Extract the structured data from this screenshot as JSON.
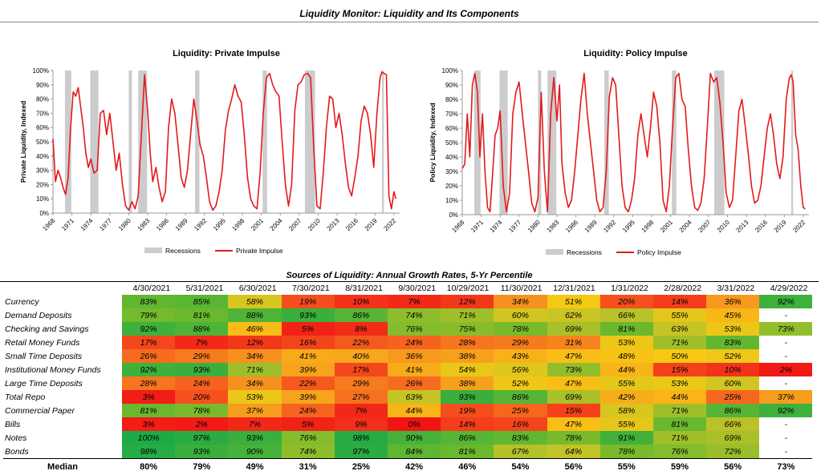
{
  "page": {
    "title": "Liquidity Monitor: Liquidity and Its Components",
    "table_title": "Sources of Liquidity: Annual Growth Rates, 5-Yr Percentile"
  },
  "colors": {
    "line": "#e31a1c",
    "recession": "#cccccc"
  },
  "chart_data": [
    {
      "type": "line",
      "title": "Liquidity: Private Impulse",
      "ylabel": "Private Liquidity, Indexed",
      "xlabel": "",
      "ylim": [
        0,
        1
      ],
      "yticks": [
        "0%",
        "10%",
        "20%",
        "30%",
        "40%",
        "50%",
        "60%",
        "70%",
        "80%",
        "90%",
        "100%"
      ],
      "xlim": [
        1968.0,
        2022.9
      ],
      "xticks": [
        "1968",
        "1971",
        "1974",
        "1977",
        "1980",
        "1983",
        "1986",
        "1989",
        "1992",
        "1995",
        "1998",
        "2001",
        "2004",
        "2007",
        "2010",
        "2013",
        "2016",
        "2019",
        "2022"
      ],
      "legend": [
        "Recessions",
        "Private Impulse"
      ],
      "legend_position": "bottom",
      "recessions": [
        [
          1969.9,
          1970.9
        ],
        [
          1973.9,
          1975.2
        ],
        [
          1980.0,
          1980.5
        ],
        [
          1981.5,
          1982.9
        ],
        [
          1990.5,
          1991.2
        ],
        [
          2001.2,
          2001.9
        ],
        [
          2007.9,
          2009.5
        ],
        [
          2020.1,
          2020.4
        ]
      ],
      "series": [
        {
          "name": "Private Impulse",
          "x": [
            1968.0,
            1968.4,
            1968.8,
            1969.2,
            1969.6,
            1970.0,
            1970.4,
            1970.8,
            1971.2,
            1971.6,
            1972.0,
            1972.4,
            1972.8,
            1973.2,
            1973.6,
            1974.0,
            1974.5,
            1975.0,
            1975.5,
            1976.0,
            1976.5,
            1977.0,
            1977.5,
            1978.0,
            1978.5,
            1979.0,
            1979.5,
            1980.0,
            1980.5,
            1981.0,
            1981.5,
            1982.0,
            1982.5,
            1983.0,
            1983.4,
            1983.8,
            1984.3,
            1984.8,
            1985.3,
            1985.8,
            1986.3,
            1986.8,
            1987.3,
            1987.8,
            1988.3,
            1988.8,
            1989.3,
            1989.8,
            1990.3,
            1990.8,
            1991.3,
            1991.8,
            1992.3,
            1992.8,
            1993.3,
            1993.8,
            1994.3,
            1994.8,
            1995.3,
            1995.8,
            1996.3,
            1996.8,
            1997.3,
            1997.8,
            1998.3,
            1998.8,
            1999.3,
            1999.8,
            2000.3,
            2000.8,
            2001.3,
            2001.8,
            2002.3,
            2002.8,
            2003.3,
            2003.8,
            2004.3,
            2004.8,
            2005.3,
            2005.8,
            2006.3,
            2006.8,
            2007.3,
            2007.8,
            2008.3,
            2008.8,
            2009.3,
            2009.8,
            2010.3,
            2010.8,
            2011.3,
            2011.8,
            2012.3,
            2012.8,
            2013.3,
            2013.8,
            2014.3,
            2014.8,
            2015.3,
            2015.8,
            2016.3,
            2016.8,
            2017.3,
            2017.8,
            2018.3,
            2018.8,
            2019.3,
            2019.8,
            2020.1,
            2020.4,
            2020.8,
            2021.2,
            2021.6,
            2022.0,
            2022.3
          ],
          "values": [
            0.52,
            0.22,
            0.3,
            0.25,
            0.18,
            0.13,
            0.25,
            0.6,
            0.85,
            0.82,
            0.88,
            0.74,
            0.6,
            0.42,
            0.32,
            0.38,
            0.28,
            0.3,
            0.7,
            0.72,
            0.55,
            0.7,
            0.5,
            0.3,
            0.42,
            0.2,
            0.05,
            0.02,
            0.08,
            0.03,
            0.12,
            0.55,
            0.97,
            0.72,
            0.42,
            0.22,
            0.32,
            0.18,
            0.08,
            0.15,
            0.6,
            0.8,
            0.7,
            0.48,
            0.25,
            0.18,
            0.3,
            0.55,
            0.8,
            0.65,
            0.48,
            0.4,
            0.25,
            0.08,
            0.02,
            0.05,
            0.15,
            0.3,
            0.58,
            0.72,
            0.8,
            0.9,
            0.82,
            0.78,
            0.55,
            0.25,
            0.1,
            0.05,
            0.03,
            0.28,
            0.7,
            0.95,
            0.98,
            0.9,
            0.85,
            0.82,
            0.5,
            0.2,
            0.05,
            0.2,
            0.72,
            0.9,
            0.92,
            0.97,
            0.98,
            0.95,
            0.45,
            0.05,
            0.03,
            0.28,
            0.6,
            0.82,
            0.8,
            0.6,
            0.7,
            0.55,
            0.35,
            0.18,
            0.12,
            0.25,
            0.4,
            0.65,
            0.75,
            0.7,
            0.55,
            0.32,
            0.7,
            0.95,
            0.99,
            0.98,
            0.97,
            0.12,
            0.03,
            0.15,
            0.1
          ]
        }
      ]
    },
    {
      "type": "line",
      "title": "Liquidity: Policy Impulse",
      "ylabel": "Policy Liquidity, Indexed",
      "xlabel": "",
      "ylim": [
        0,
        1
      ],
      "yticks": [
        "0%",
        "10%",
        "20%",
        "30%",
        "40%",
        "50%",
        "60%",
        "70%",
        "80%",
        "90%",
        "100%"
      ],
      "xlim": [
        1968.0,
        2022.9
      ],
      "xticks": [
        "1968",
        "1971",
        "1974",
        "1977",
        "1980",
        "1983",
        "1986",
        "1989",
        "1992",
        "1995",
        "1998",
        "2001",
        "2004",
        "2007",
        "2010",
        "2013",
        "2016",
        "2019",
        "2022"
      ],
      "legend": [
        "Recessions",
        "Policy Impulse"
      ],
      "legend_position": "bottom",
      "recessions": [
        [
          1969.9,
          1970.9
        ],
        [
          1973.9,
          1975.2
        ],
        [
          1980.0,
          1980.5
        ],
        [
          1981.5,
          1982.9
        ],
        [
          1990.5,
          1991.2
        ],
        [
          2001.2,
          2001.9
        ],
        [
          2007.9,
          2009.5
        ],
        [
          2020.1,
          2020.4
        ]
      ],
      "series": [
        {
          "name": "Policy Impulse",
          "x": [
            1968.0,
            1968.4,
            1968.8,
            1969.2,
            1969.6,
            1970.0,
            1970.4,
            1970.8,
            1971.2,
            1971.6,
            1972.0,
            1972.4,
            1972.8,
            1973.2,
            1973.6,
            1974.0,
            1974.5,
            1975.0,
            1975.5,
            1976.0,
            1976.5,
            1977.0,
            1977.5,
            1978.0,
            1978.5,
            1979.0,
            1979.5,
            1980.0,
            1980.5,
            1981.0,
            1981.5,
            1982.0,
            1982.5,
            1983.0,
            1983.4,
            1983.8,
            1984.3,
            1984.8,
            1985.3,
            1985.8,
            1986.3,
            1986.8,
            1987.3,
            1987.8,
            1988.3,
            1988.8,
            1989.3,
            1989.8,
            1990.3,
            1990.8,
            1991.3,
            1991.8,
            1992.3,
            1992.8,
            1993.3,
            1993.8,
            1994.3,
            1994.8,
            1995.3,
            1995.8,
            1996.3,
            1996.8,
            1997.3,
            1997.8,
            1998.3,
            1998.8,
            1999.3,
            1999.8,
            2000.3,
            2000.8,
            2001.3,
            2001.8,
            2002.3,
            2002.8,
            2003.3,
            2003.8,
            2004.3,
            2004.8,
            2005.3,
            2005.8,
            2006.3,
            2006.8,
            2007.3,
            2007.8,
            2008.3,
            2008.8,
            2009.3,
            2009.8,
            2010.3,
            2010.8,
            2011.3,
            2011.8,
            2012.3,
            2012.8,
            2013.3,
            2013.8,
            2014.3,
            2014.8,
            2015.3,
            2015.8,
            2016.3,
            2016.8,
            2017.3,
            2017.8,
            2018.3,
            2018.8,
            2019.3,
            2019.8,
            2020.1,
            2020.4,
            2020.8,
            2021.2,
            2021.6,
            2022.0,
            2022.3
          ],
          "values": [
            0.32,
            0.35,
            0.7,
            0.4,
            0.9,
            0.98,
            0.85,
            0.4,
            0.7,
            0.3,
            0.05,
            0.02,
            0.28,
            0.55,
            0.6,
            0.72,
            0.2,
            0.02,
            0.15,
            0.7,
            0.85,
            0.92,
            0.7,
            0.5,
            0.3,
            0.08,
            0.02,
            0.12,
            0.85,
            0.3,
            0.02,
            0.7,
            0.95,
            0.65,
            0.9,
            0.35,
            0.15,
            0.05,
            0.1,
            0.3,
            0.55,
            0.8,
            0.98,
            0.7,
            0.5,
            0.3,
            0.1,
            0.02,
            0.05,
            0.3,
            0.82,
            0.95,
            0.9,
            0.55,
            0.2,
            0.05,
            0.02,
            0.1,
            0.25,
            0.55,
            0.7,
            0.55,
            0.4,
            0.6,
            0.85,
            0.75,
            0.5,
            0.1,
            0.02,
            0.2,
            0.6,
            0.95,
            0.98,
            0.8,
            0.75,
            0.45,
            0.2,
            0.05,
            0.03,
            0.08,
            0.25,
            0.6,
            0.98,
            0.92,
            0.95,
            0.78,
            0.5,
            0.15,
            0.05,
            0.1,
            0.4,
            0.72,
            0.8,
            0.62,
            0.42,
            0.2,
            0.08,
            0.1,
            0.2,
            0.4,
            0.6,
            0.7,
            0.55,
            0.35,
            0.25,
            0.4,
            0.8,
            0.95,
            0.97,
            0.92,
            0.55,
            0.45,
            0.2,
            0.05,
            0.04
          ]
        }
      ]
    },
    {
      "type": "table",
      "title": "Sources of Liquidity: Annual Growth Rates, 5-Yr Percentile",
      "columns": [
        "4/30/2021",
        "5/31/2021",
        "6/30/2021",
        "7/30/2021",
        "8/31/2021",
        "9/30/2021",
        "10/29/2021",
        "11/30/2021",
        "12/31/2021",
        "1/31/2022",
        "2/28/2022",
        "3/31/2022",
        "4/29/2022"
      ],
      "rows": [
        {
          "label": "Currency",
          "values": [
            83,
            85,
            58,
            19,
            10,
            7,
            12,
            34,
            51,
            20,
            14,
            36,
            92
          ],
          "cells": [
            "83%",
            "85%",
            "58%",
            "19%",
            "10%",
            "7%",
            "12%",
            "34%",
            "51%",
            "20%",
            "14%",
            "36%",
            "92%"
          ]
        },
        {
          "label": "Demand Deposits",
          "values": [
            79,
            81,
            88,
            93,
            86,
            74,
            71,
            60,
            62,
            66,
            55,
            45,
            null
          ],
          "cells": [
            "79%",
            "81%",
            "88%",
            "93%",
            "86%",
            "74%",
            "71%",
            "60%",
            "62%",
            "66%",
            "55%",
            "45%",
            "-"
          ]
        },
        {
          "label": "Checking and Savings",
          "values": [
            92,
            88,
            46,
            5,
            8,
            76,
            75,
            78,
            69,
            81,
            63,
            53,
            73
          ],
          "cells": [
            "92%",
            "88%",
            "46%",
            "5%",
            "8%",
            "76%",
            "75%",
            "78%",
            "69%",
            "81%",
            "63%",
            "53%",
            "73%"
          ]
        },
        {
          "label": "Retail Money Funds",
          "values": [
            17,
            7,
            12,
            16,
            22,
            24,
            28,
            29,
            31,
            53,
            71,
            83,
            null
          ],
          "cells": [
            "17%",
            "7%",
            "12%",
            "16%",
            "22%",
            "24%",
            "28%",
            "29%",
            "31%",
            "53%",
            "71%",
            "83%",
            "-"
          ]
        },
        {
          "label": "Small Time Deposits",
          "values": [
            26,
            29,
            34,
            41,
            40,
            36,
            38,
            43,
            47,
            48,
            50,
            52,
            null
          ],
          "cells": [
            "26%",
            "29%",
            "34%",
            "41%",
            "40%",
            "36%",
            "38%",
            "43%",
            "47%",
            "48%",
            "50%",
            "52%",
            "-"
          ]
        },
        {
          "label": "Institutional Money Funds",
          "values": [
            92,
            93,
            71,
            39,
            17,
            41,
            54,
            56,
            73,
            44,
            15,
            10,
            2
          ],
          "cells": [
            "92%",
            "93%",
            "71%",
            "39%",
            "17%",
            "41%",
            "54%",
            "56%",
            "73%",
            "44%",
            "15%",
            "10%",
            "2%"
          ]
        },
        {
          "label": "Large Time Deposits",
          "values": [
            28,
            24,
            34,
            22,
            29,
            26,
            38,
            52,
            47,
            55,
            53,
            60,
            null
          ],
          "cells": [
            "28%",
            "24%",
            "34%",
            "22%",
            "29%",
            "26%",
            "38%",
            "52%",
            "47%",
            "55%",
            "53%",
            "60%",
            "-"
          ]
        },
        {
          "label": "Total Repo",
          "values": [
            3,
            20,
            53,
            39,
            27,
            63,
            93,
            86,
            69,
            42,
            44,
            25,
            37
          ],
          "cells": [
            "3%",
            "20%",
            "53%",
            "39%",
            "27%",
            "63%",
            "93%",
            "86%",
            "69%",
            "42%",
            "44%",
            "25%",
            "37%"
          ]
        },
        {
          "label": "Commercial Paper",
          "values": [
            81,
            78,
            37,
            24,
            7,
            44,
            19,
            25,
            15,
            58,
            71,
            86,
            92
          ],
          "cells": [
            "81%",
            "78%",
            "37%",
            "24%",
            "7%",
            "44%",
            "19%",
            "25%",
            "15%",
            "58%",
            "71%",
            "86%",
            "92%"
          ]
        },
        {
          "label": "Bills",
          "values": [
            3,
            2,
            7,
            5,
            9,
            0,
            14,
            16,
            47,
            55,
            81,
            66,
            null
          ],
          "cells": [
            "3%",
            "2%",
            "7%",
            "5%",
            "9%",
            "0%",
            "14%",
            "16%",
            "47%",
            "55%",
            "81%",
            "66%",
            "-"
          ]
        },
        {
          "label": "Notes",
          "values": [
            100,
            97,
            93,
            76,
            98,
            90,
            86,
            83,
            78,
            91,
            71,
            69,
            null
          ],
          "cells": [
            "100%",
            "97%",
            "93%",
            "76%",
            "98%",
            "90%",
            "86%",
            "83%",
            "78%",
            "91%",
            "71%",
            "69%",
            "-"
          ]
        },
        {
          "label": "Bonds",
          "values": [
            98,
            93,
            90,
            74,
            97,
            84,
            81,
            67,
            64,
            78,
            76,
            72,
            null
          ],
          "cells": [
            "98%",
            "93%",
            "90%",
            "74%",
            "97%",
            "84%",
            "81%",
            "67%",
            "64%",
            "78%",
            "76%",
            "72%",
            "-"
          ]
        }
      ],
      "median": {
        "label": "Median",
        "values": [
          80,
          79,
          49,
          31,
          25,
          42,
          46,
          54,
          56,
          55,
          59,
          56,
          73
        ],
        "cells": [
          "80%",
          "79%",
          "49%",
          "31%",
          "25%",
          "42%",
          "46%",
          "54%",
          "56%",
          "55%",
          "59%",
          "56%",
          "73%"
        ]
      }
    }
  ]
}
